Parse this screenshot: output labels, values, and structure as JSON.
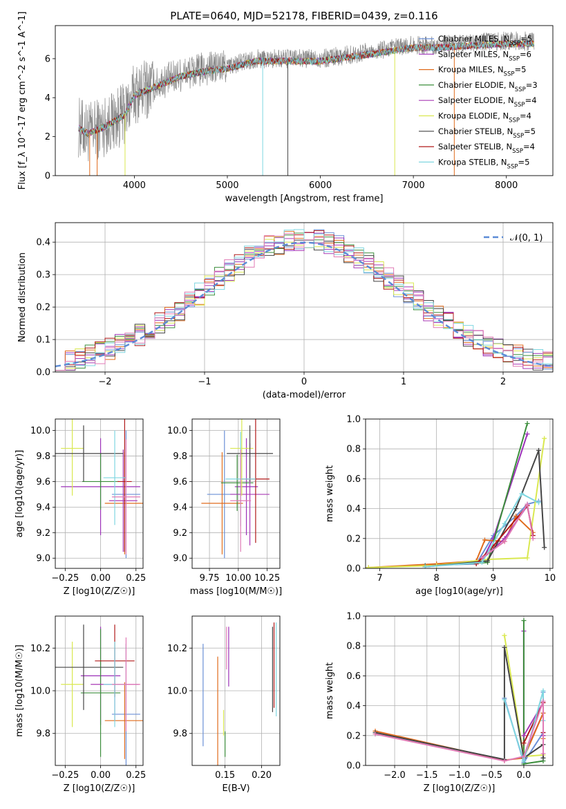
{
  "figure_title": "PLATE=0640, MJD=52178, FIBERID=0439, z=0.116",
  "palette": [
    "#6a8fd6",
    "#9b30b8",
    "#e06b1c",
    "#3a8d3a",
    "#a83ab5",
    "#d9e84f",
    "#444444",
    "#b01818",
    "#7fd6e0",
    "#e07ab5"
  ],
  "legend": [
    {
      "label": "Chabrier MILES, N_SSP=5",
      "color": "#6a8fd6"
    },
    {
      "label": "Salpeter MILES, N_SSP=6",
      "color": "#9b30b8"
    },
    {
      "label": "Kroupa MILES, N_SSP=5",
      "color": "#e06b1c"
    },
    {
      "label": "Chabrier ELODIE, N_SSP=3",
      "color": "#3a8d3a"
    },
    {
      "label": "Salpeter ELODIE, N_SSP=4",
      "color": "#a83ab5"
    },
    {
      "label": "Kroupa ELODIE, N_SSP=4",
      "color": "#d9e84f"
    },
    {
      "label": "Chabrier STELIB, N_SSP=5",
      "color": "#444444"
    },
    {
      "label": "Salpeter STELIB, N_SSP=4",
      "color": "#b01818"
    },
    {
      "label": "Kroupa STELIB, N_SSP=5",
      "color": "#7fd6e0"
    }
  ],
  "chart_data": [
    {
      "id": "spectrum",
      "type": "line",
      "xlabel": "wavelength [Angstrom, rest frame]",
      "ylabel": "Flux [f_λ 10^-17 erg cm^-2 s^-1 A^-1]",
      "xlim": [
        3150,
        8500
      ],
      "ylim": [
        0,
        7.7
      ],
      "xticks": [
        4000,
        5000,
        6000,
        7000,
        8000
      ],
      "yticks": [
        0,
        2,
        4,
        6
      ],
      "grid": false,
      "legend_position": "top-right",
      "observed_color": "#888888",
      "continuum_x": [
        3400,
        3500,
        3700,
        3900,
        4000,
        4200,
        4500,
        4800,
        5000,
        5300,
        5600,
        6000,
        6300,
        6600,
        7000,
        7300,
        7600,
        8000,
        8300
      ],
      "continuum_y": [
        2.5,
        2.2,
        2.6,
        3.2,
        4.2,
        4.6,
        5.2,
        5.5,
        5.6,
        6.0,
        6.0,
        6.0,
        6.2,
        6.4,
        6.7,
        6.7,
        6.8,
        6.9,
        6.9
      ]
    },
    {
      "id": "residuals",
      "type": "step",
      "xlabel": "(data-model)/error",
      "ylabel": "Normed distribution",
      "xlim": [
        -2.5,
        2.5
      ],
      "ylim": [
        0,
        0.46
      ],
      "xticks": [
        -2,
        -1,
        0,
        1,
        2
      ],
      "yticks": [
        0.0,
        0.1,
        0.2,
        0.3,
        0.4
      ],
      "grid": true,
      "legend": [
        {
          "label": "𝒩(0, 1)",
          "color": "#5b8bd6",
          "style": "dashed"
        }
      ],
      "legend_position": "top-right",
      "normal": {
        "mean": 0,
        "sigma": 1
      },
      "bin_width": 0.1
    },
    {
      "id": "age_vs_Z",
      "type": "errorbar",
      "xlabel": "Z [log10(Z/Z☉)]",
      "ylabel": "age  [log10(age/yr)]",
      "xlim": [
        -0.32,
        0.3
      ],
      "ylim": [
        8.92,
        10.09
      ],
      "xticks": [
        -0.25,
        0.0,
        0.25
      ],
      "yticks": [
        9.0,
        9.2,
        9.4,
        9.6,
        9.8,
        10.0
      ],
      "grid": true,
      "points": [
        {
          "x": 0.18,
          "y": 9.5,
          "xerr": 0.1,
          "yerr": 0.5,
          "color": "#6a8fd6"
        },
        {
          "x": 0.0,
          "y": 9.56,
          "xerr": 0.28,
          "yerr": 0.38,
          "color": "#9b30b8"
        },
        {
          "x": 0.17,
          "y": 9.43,
          "xerr": 0.14,
          "yerr": 0.4,
          "color": "#e06b1c"
        },
        {
          "x": 0.0,
          "y": 9.6,
          "xerr": 0.13,
          "yerr": 0.22,
          "color": "#3a8d3a"
        },
        {
          "x": 0.16,
          "y": 9.45,
          "xerr": 0.1,
          "yerr": 0.4,
          "color": "#a83ab5"
        },
        {
          "x": -0.2,
          "y": 9.86,
          "xerr": 0.08,
          "yerr": 0.37,
          "color": "#d9e84f"
        },
        {
          "x": -0.12,
          "y": 9.82,
          "xerr": 0.28,
          "yerr": 0.22,
          "color": "#444444"
        },
        {
          "x": 0.17,
          "y": 9.6,
          "xerr": 0.05,
          "yerr": 0.55,
          "color": "#b01818"
        },
        {
          "x": 0.1,
          "y": 9.63,
          "xerr": 0.08,
          "yerr": 0.37,
          "color": "#7fd6e0"
        },
        {
          "x": 0.18,
          "y": 9.48,
          "xerr": 0.1,
          "yerr": 0.45,
          "color": "#e07ab5"
        }
      ]
    },
    {
      "id": "age_vs_mass",
      "type": "errorbar",
      "xlabel": "mass [log10(M/M☉)]",
      "ylabel": "",
      "xlim": [
        9.6,
        10.36
      ],
      "ylim": [
        8.92,
        10.09
      ],
      "xticks": [
        9.75,
        10.0,
        10.25
      ],
      "yticks": [
        9.0,
        9.2,
        9.4,
        9.6,
        9.8,
        10.0
      ],
      "grid": true,
      "points": [
        {
          "x": 9.88,
          "y": 9.5,
          "xerr": 0.15,
          "yerr": 0.5,
          "color": "#6a8fd6"
        },
        {
          "x": 10.07,
          "y": 9.56,
          "xerr": 0.1,
          "yerr": 0.38,
          "color": "#9b30b8"
        },
        {
          "x": 9.86,
          "y": 9.43,
          "xerr": 0.18,
          "yerr": 0.4,
          "color": "#e06b1c"
        },
        {
          "x": 9.99,
          "y": 9.59,
          "xerr": 0.14,
          "yerr": 0.22,
          "color": "#3a8d3a"
        },
        {
          "x": 10.1,
          "y": 9.5,
          "xerr": 0.17,
          "yerr": 0.4,
          "color": "#a83ab5"
        },
        {
          "x": 10.03,
          "y": 9.86,
          "xerr": 0.1,
          "yerr": 0.37,
          "color": "#d9e84f"
        },
        {
          "x": 10.1,
          "y": 9.82,
          "xerr": 0.2,
          "yerr": 0.22,
          "color": "#444444"
        },
        {
          "x": 10.15,
          "y": 9.62,
          "xerr": 0.12,
          "yerr": 0.5,
          "color": "#b01818"
        },
        {
          "x": 10.02,
          "y": 9.62,
          "xerr": 0.13,
          "yerr": 0.37,
          "color": "#7fd6e0"
        },
        {
          "x": 10.02,
          "y": 9.45,
          "xerr": 0.09,
          "yerr": 0.4,
          "color": "#e07ab5"
        }
      ]
    },
    {
      "id": "weight_vs_age",
      "type": "line",
      "xlabel": "age  [log10(age/yr)]",
      "ylabel": "mass weight",
      "xlim": [
        6.75,
        10.05
      ],
      "ylim": [
        0,
        1.0
      ],
      "xticks": [
        7,
        8,
        9,
        10
      ],
      "yticks": [
        0.0,
        0.2,
        0.4,
        0.6,
        0.8,
        1.0
      ],
      "grid": true,
      "series": [
        {
          "color": "#6a8fd6",
          "x": [
            7.8,
            8.7,
            9.0,
            9.4,
            9.6,
            9.8
          ],
          "y": [
            0.02,
            0.03,
            0.22,
            0.35,
            0.43,
            0.45
          ]
        },
        {
          "color": "#9b30b8",
          "x": [
            7.8,
            8.8,
            9.0,
            9.6
          ],
          "y": [
            0.01,
            0.05,
            0.2,
            0.9
          ]
        },
        {
          "color": "#e06b1c",
          "x": [
            6.8,
            8.0,
            8.7,
            8.85,
            9.2,
            9.4,
            9.7
          ],
          "y": [
            0.005,
            0.03,
            0.05,
            0.19,
            0.18,
            0.35,
            0.24
          ]
        },
        {
          "color": "#3a8d3a",
          "x": [
            7.8,
            8.9,
            9.6
          ],
          "y": [
            0.015,
            0.04,
            0.97
          ]
        },
        {
          "color": "#a83ab5",
          "x": [
            8.8,
            9.2,
            9.6,
            9.7
          ],
          "y": [
            0.06,
            0.2,
            0.42,
            0.22
          ]
        },
        {
          "color": "#d9e84f",
          "x": [
            6.8,
            8.0,
            8.9,
            9.6,
            9.9
          ],
          "y": [
            0.005,
            0.02,
            0.06,
            0.07,
            0.87
          ]
        },
        {
          "color": "#444444",
          "x": [
            7.8,
            8.9,
            9.4,
            9.8,
            9.9
          ],
          "y": [
            0.01,
            0.05,
            0.4,
            0.79,
            0.14
          ]
        },
        {
          "color": "#b01818",
          "x": [
            8.7,
            9.0,
            9.6,
            9.7
          ],
          "y": [
            0.03,
            0.15,
            0.42,
            0.22
          ]
        },
        {
          "color": "#7fd6e0",
          "x": [
            7.8,
            8.8,
            9.2,
            9.5,
            9.8
          ],
          "y": [
            0.01,
            0.04,
            0.3,
            0.5,
            0.44
          ]
        },
        {
          "color": "#e07ab5",
          "x": [
            8.8,
            9.2,
            9.6,
            9.7
          ],
          "y": [
            0.07,
            0.18,
            0.43,
            0.2
          ]
        }
      ]
    },
    {
      "id": "mass_vs_Z",
      "type": "errorbar",
      "xlabel": "Z [log10(Z/Z☉)]",
      "ylabel": "mass [log10(M/M☉)]",
      "xlim": [
        -0.32,
        0.3
      ],
      "ylim": [
        9.65,
        10.35
      ],
      "xticks": [
        -0.25,
        0.0,
        0.25
      ],
      "yticks": [
        9.8,
        10.0,
        10.2
      ],
      "grid": true,
      "points": [
        {
          "x": 0.18,
          "y": 9.89,
          "xerr": 0.1,
          "yerr": 0.33,
          "color": "#6a8fd6"
        },
        {
          "x": 0.0,
          "y": 10.07,
          "xerr": 0.14,
          "yerr": 0.23,
          "color": "#9b30b8"
        },
        {
          "x": 0.17,
          "y": 9.86,
          "xerr": 0.14,
          "yerr": 0.18,
          "color": "#e06b1c"
        },
        {
          "x": 0.0,
          "y": 9.99,
          "xerr": 0.14,
          "yerr": 0.3,
          "color": "#3a8d3a"
        },
        {
          "x": 0.1,
          "y": 10.03,
          "xerr": 0.17,
          "yerr": 0.17,
          "color": "#a83ab5"
        },
        {
          "x": -0.2,
          "y": 10.03,
          "xerr": 0.08,
          "yerr": 0.2,
          "color": "#d9e84f"
        },
        {
          "x": -0.12,
          "y": 10.11,
          "xerr": 0.28,
          "yerr": 0.2,
          "color": "#444444"
        },
        {
          "x": 0.1,
          "y": 10.14,
          "xerr": 0.14,
          "yerr": 0.17,
          "color": "#b01818"
        },
        {
          "x": 0.1,
          "y": 10.03,
          "xerr": 0.08,
          "yerr": 0.2,
          "color": "#7fd6e0"
        },
        {
          "x": 0.18,
          "y": 10.03,
          "xerr": 0.1,
          "yerr": 0.22,
          "color": "#e07ab5"
        }
      ]
    },
    {
      "id": "mass_vs_ebv",
      "type": "errorbar",
      "xlabel": "E(B-V)",
      "ylabel": "",
      "xlim": [
        0.105,
        0.225
      ],
      "ylim": [
        9.65,
        10.35
      ],
      "xticks": [
        0.1,
        0.15,
        0.2
      ],
      "yticks": [
        9.8,
        10.0,
        10.2
      ],
      "grid": true,
      "points": [
        {
          "x": 0.12,
          "y": 9.98,
          "xerr": 0,
          "yerr": 0.24,
          "color": "#6a8fd6"
        },
        {
          "x": 0.155,
          "y": 10.16,
          "xerr": 0,
          "yerr": 0.14,
          "color": "#9b30b8"
        },
        {
          "x": 0.14,
          "y": 9.89,
          "xerr": 0,
          "yerr": 0.27,
          "color": "#e06b1c"
        },
        {
          "x": 0.15,
          "y": 9.75,
          "xerr": 0,
          "yerr": 0.06,
          "color": "#3a8d3a"
        },
        {
          "x": 0.152,
          "y": 10.2,
          "xerr": 0,
          "yerr": 0.1,
          "color": "#e07ab5"
        },
        {
          "x": 0.148,
          "y": 9.85,
          "xerr": 0,
          "yerr": 0.06,
          "color": "#d9e84f"
        },
        {
          "x": 0.215,
          "y": 10.1,
          "xerr": 0,
          "yerr": 0.2,
          "color": "#444444"
        },
        {
          "x": 0.217,
          "y": 10.12,
          "xerr": 0,
          "yerr": 0.2,
          "color": "#b01818"
        },
        {
          "x": 0.22,
          "y": 10.1,
          "xerr": 0,
          "yerr": 0.22,
          "color": "#7fd6e0"
        }
      ]
    },
    {
      "id": "weight_vs_Z",
      "type": "line",
      "xlabel": "Z [log10(Z/Z☉)]",
      "ylabel": "mass weight",
      "xlim": [
        -2.45,
        0.45
      ],
      "ylim": [
        0,
        1.0
      ],
      "xticks": [
        -2.0,
        -1.5,
        -1.0,
        -0.5,
        0.0
      ],
      "yticks": [
        0.0,
        0.2,
        0.4,
        0.6,
        0.8,
        1.0
      ],
      "grid": true,
      "series": [
        {
          "color": "#6a8fd6",
          "x": [
            -0.3,
            0.0,
            0.3,
            0.3
          ],
          "y": [
            0.45,
            0.02,
            0.22,
            0.49
          ]
        },
        {
          "color": "#9b30b8",
          "x": [
            0.0,
            0.0,
            0.3,
            0.3
          ],
          "y": [
            0.9,
            0.06,
            0.35,
            0.2
          ]
        },
        {
          "color": "#e06b1c",
          "x": [
            -2.3,
            -0.3,
            0.0,
            0.3,
            0.3
          ],
          "y": [
            0.23,
            0.035,
            0.05,
            0.35,
            0.18
          ]
        },
        {
          "color": "#3a8d3a",
          "x": [
            0.0,
            0.0,
            0.3
          ],
          "y": [
            0.97,
            0.01,
            0.03
          ]
        },
        {
          "color": "#a83ab5",
          "x": [
            0.0,
            0.3,
            0.3
          ],
          "y": [
            0.2,
            0.42,
            0.22
          ]
        },
        {
          "color": "#d9e84f",
          "x": [
            -0.3,
            0.0,
            0.3
          ],
          "y": [
            0.87,
            0.06,
            0.07
          ]
        },
        {
          "color": "#444444",
          "x": [
            -2.3,
            -0.3,
            -0.3,
            0.0,
            0.3,
            0.3
          ],
          "y": [
            0.22,
            0.04,
            0.79,
            0.05,
            0.14,
            0.05
          ]
        },
        {
          "color": "#b01818",
          "x": [
            0.0,
            0.3,
            0.3
          ],
          "y": [
            0.15,
            0.42,
            0.22
          ]
        },
        {
          "color": "#7fd6e0",
          "x": [
            -0.3,
            0.0,
            0.3,
            0.3
          ],
          "y": [
            0.44,
            0.03,
            0.5,
            0.3
          ]
        },
        {
          "color": "#e07ab5",
          "x": [
            -2.3,
            -0.3,
            0.0,
            0.3,
            0.3
          ],
          "y": [
            0.21,
            0.03,
            0.06,
            0.43,
            0.08
          ]
        }
      ]
    }
  ]
}
